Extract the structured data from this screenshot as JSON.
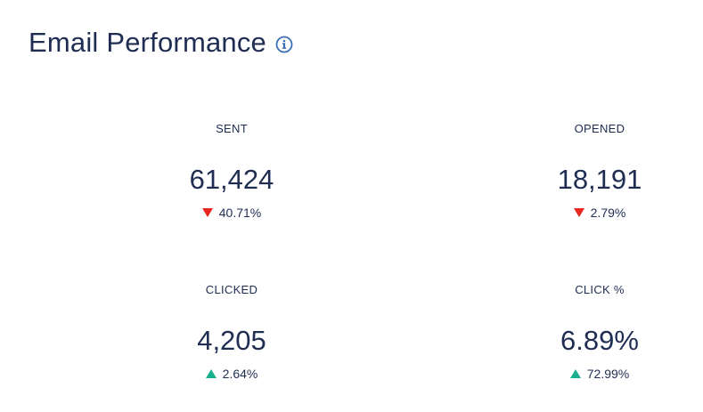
{
  "header": {
    "title": "Email Performance",
    "info_icon": "info-circle-icon"
  },
  "colors": {
    "text": "#1f2d52",
    "down": "#e8261e",
    "up": "#19b08f",
    "info": "#3b6fb6"
  },
  "stats": [
    {
      "label": "SENT",
      "value": "61,424",
      "change": "40.71%",
      "direction": "down"
    },
    {
      "label": "OPENED",
      "value": "18,191",
      "change": "2.79%",
      "direction": "down"
    },
    {
      "label": "CLICKED",
      "value": "4,205",
      "change": "2.64%",
      "direction": "up"
    },
    {
      "label": "CLICK %",
      "value": "6.89%",
      "change": "72.99%",
      "direction": "up"
    }
  ]
}
